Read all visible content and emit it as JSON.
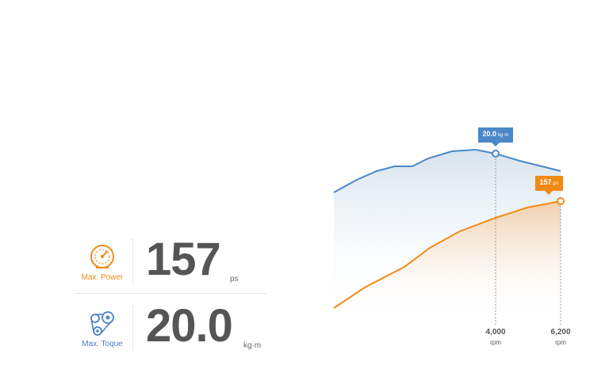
{
  "power": {
    "label": "Max. Power",
    "value": "157",
    "unit": "ps",
    "icon": "speedometer-icon",
    "color": "#f08c1c"
  },
  "torque": {
    "label": "Max. Toque",
    "value": "20.0",
    "unit": "kg·m",
    "icon": "engine-belt-icon",
    "color": "#4a82c4"
  },
  "chart_data": {
    "type": "area",
    "title": "",
    "xlabel": "rpm",
    "ylabel": "",
    "series": [
      {
        "name": "Max. Toque",
        "color": "#4a88c8",
        "peak": {
          "value": "20.0",
          "unit": "kg·m",
          "rpm": 4000
        }
      },
      {
        "name": "Max. Power",
        "color": "#f28a14",
        "peak": {
          "value": "157",
          "unit": "ps",
          "rpm": 6200
        }
      }
    ],
    "ticks": [
      {
        "label": "4,000",
        "unit": "rpm"
      },
      {
        "label": "6,200",
        "unit": "rpm"
      }
    ]
  }
}
